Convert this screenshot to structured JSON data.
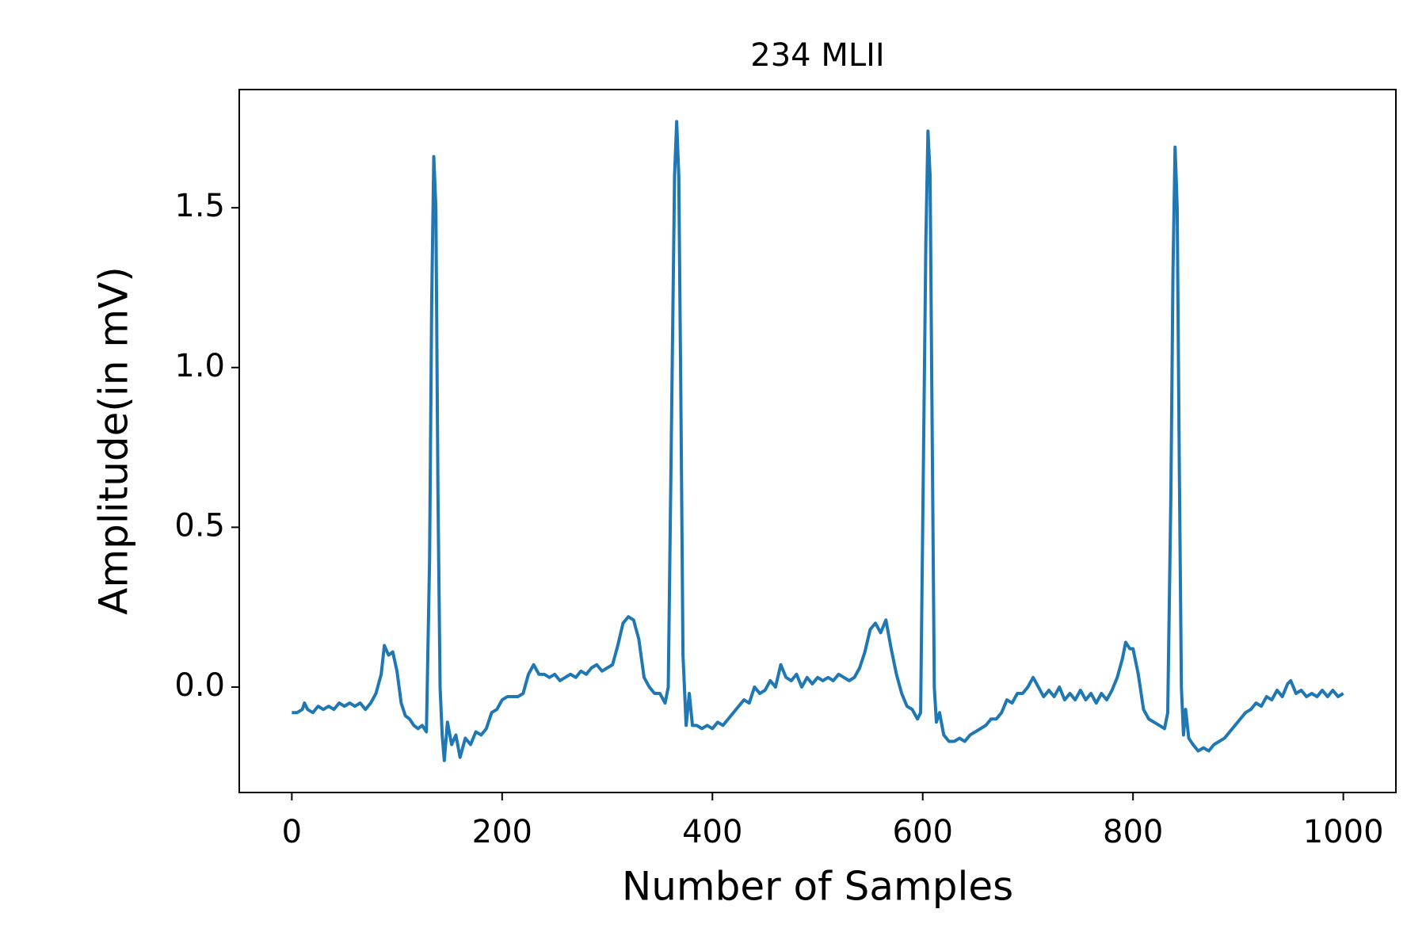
{
  "chart_data": {
    "type": "line",
    "title": "234 MLII",
    "xlabel": "Number of Samples",
    "ylabel": "Amplitude(in mV)",
    "color": "#1f77b4",
    "x": [
      0,
      5,
      10,
      12,
      15,
      20,
      25,
      30,
      35,
      40,
      45,
      50,
      55,
      60,
      65,
      70,
      75,
      80,
      85,
      88,
      92,
      96,
      100,
      104,
      108,
      112,
      116,
      120,
      124,
      128,
      131,
      133,
      135,
      137,
      139,
      141,
      143,
      145,
      148,
      152,
      156,
      160,
      165,
      170,
      175,
      180,
      185,
      190,
      195,
      200,
      205,
      210,
      215,
      220,
      225,
      230,
      235,
      240,
      245,
      250,
      255,
      260,
      265,
      270,
      275,
      280,
      285,
      290,
      295,
      300,
      305,
      310,
      315,
      320,
      325,
      330,
      335,
      340,
      345,
      350,
      355,
      358,
      361,
      364,
      366,
      368,
      370,
      372,
      375,
      378,
      381,
      385,
      390,
      395,
      400,
      405,
      410,
      415,
      420,
      425,
      430,
      435,
      440,
      445,
      450,
      455,
      460,
      465,
      470,
      475,
      480,
      485,
      490,
      495,
      500,
      505,
      510,
      515,
      520,
      525,
      530,
      535,
      540,
      545,
      550,
      555,
      560,
      565,
      570,
      575,
      580,
      585,
      590,
      595,
      598,
      601,
      603,
      605,
      607,
      609,
      611,
      613,
      616,
      620,
      625,
      630,
      635,
      640,
      645,
      650,
      655,
      660,
      665,
      670,
      675,
      680,
      685,
      690,
      695,
      700,
      705,
      710,
      715,
      720,
      725,
      730,
      735,
      740,
      745,
      750,
      755,
      760,
      765,
      770,
      775,
      780,
      785,
      790,
      793,
      797,
      800,
      805,
      810,
      815,
      820,
      825,
      830,
      833,
      836,
      838,
      840,
      842,
      844,
      846,
      848,
      850,
      853,
      857,
      862,
      867,
      872,
      877,
      882,
      887,
      892,
      897,
      902,
      907,
      912,
      917,
      922,
      927,
      932,
      937,
      942,
      947,
      950,
      955,
      960,
      965,
      970,
      975,
      980,
      985,
      990,
      995,
      1000
    ],
    "values": [
      -0.08,
      -0.08,
      -0.07,
      -0.05,
      -0.07,
      -0.08,
      -0.06,
      -0.07,
      -0.06,
      -0.07,
      -0.05,
      -0.06,
      -0.05,
      -0.06,
      -0.05,
      -0.07,
      -0.05,
      -0.02,
      0.04,
      0.13,
      0.1,
      0.11,
      0.05,
      -0.05,
      -0.09,
      -0.1,
      -0.12,
      -0.13,
      -0.12,
      -0.14,
      0.4,
      1.2,
      1.66,
      1.5,
      0.6,
      0.0,
      -0.15,
      -0.23,
      -0.11,
      -0.18,
      -0.15,
      -0.22,
      -0.16,
      -0.18,
      -0.14,
      -0.15,
      -0.13,
      -0.08,
      -0.07,
      -0.04,
      -0.03,
      -0.03,
      -0.03,
      -0.02,
      0.04,
      0.07,
      0.04,
      0.04,
      0.03,
      0.04,
      0.02,
      0.03,
      0.04,
      0.03,
      0.05,
      0.04,
      0.06,
      0.07,
      0.05,
      0.06,
      0.07,
      0.13,
      0.2,
      0.22,
      0.21,
      0.15,
      0.03,
      0.0,
      -0.02,
      -0.02,
      -0.05,
      0.0,
      0.8,
      1.6,
      1.77,
      1.6,
      0.9,
      0.1,
      -0.12,
      -0.02,
      -0.12,
      -0.12,
      -0.13,
      -0.12,
      -0.13,
      -0.11,
      -0.12,
      -0.1,
      -0.08,
      -0.06,
      -0.04,
      -0.05,
      0.0,
      -0.02,
      -0.01,
      0.02,
      0.0,
      0.07,
      0.03,
      0.02,
      0.04,
      0.0,
      0.03,
      0.01,
      0.03,
      0.02,
      0.03,
      0.02,
      0.04,
      0.03,
      0.02,
      0.03,
      0.06,
      0.11,
      0.18,
      0.2,
      0.17,
      0.21,
      0.12,
      0.04,
      -0.02,
      -0.06,
      -0.07,
      -0.1,
      -0.08,
      0.8,
      1.4,
      1.74,
      1.6,
      0.8,
      0.0,
      -0.11,
      -0.08,
      -0.15,
      -0.17,
      -0.17,
      -0.16,
      -0.17,
      -0.15,
      -0.14,
      -0.13,
      -0.12,
      -0.1,
      -0.1,
      -0.08,
      -0.04,
      -0.05,
      -0.02,
      -0.02,
      0.0,
      0.03,
      0.0,
      -0.03,
      -0.01,
      -0.03,
      0.0,
      -0.04,
      -0.02,
      -0.04,
      -0.01,
      -0.04,
      -0.02,
      -0.05,
      -0.02,
      -0.04,
      -0.01,
      0.03,
      0.09,
      0.14,
      0.12,
      0.12,
      0.04,
      -0.07,
      -0.1,
      -0.11,
      -0.12,
      -0.13,
      -0.08,
      0.6,
      1.3,
      1.69,
      1.5,
      0.7,
      0.0,
      -0.15,
      -0.07,
      -0.16,
      -0.18,
      -0.2,
      -0.19,
      -0.2,
      -0.18,
      -0.17,
      -0.16,
      -0.14,
      -0.12,
      -0.1,
      -0.08,
      -0.07,
      -0.05,
      -0.06,
      -0.03,
      -0.04,
      -0.01,
      -0.03,
      0.01,
      0.02,
      -0.02,
      -0.01,
      -0.03,
      -0.02,
      -0.03,
      -0.01,
      -0.03,
      -0.01,
      -0.03,
      -0.02
    ],
    "xlim": [
      -50,
      1050
    ],
    "ylim": [
      -0.33,
      1.87
    ],
    "xticks": [
      0,
      200,
      400,
      600,
      800,
      1000
    ],
    "yticks": [
      {
        "value": 0,
        "label": "0.0"
      },
      0.5,
      {
        "value": 1,
        "label": "1.0"
      },
      1.5
    ]
  }
}
